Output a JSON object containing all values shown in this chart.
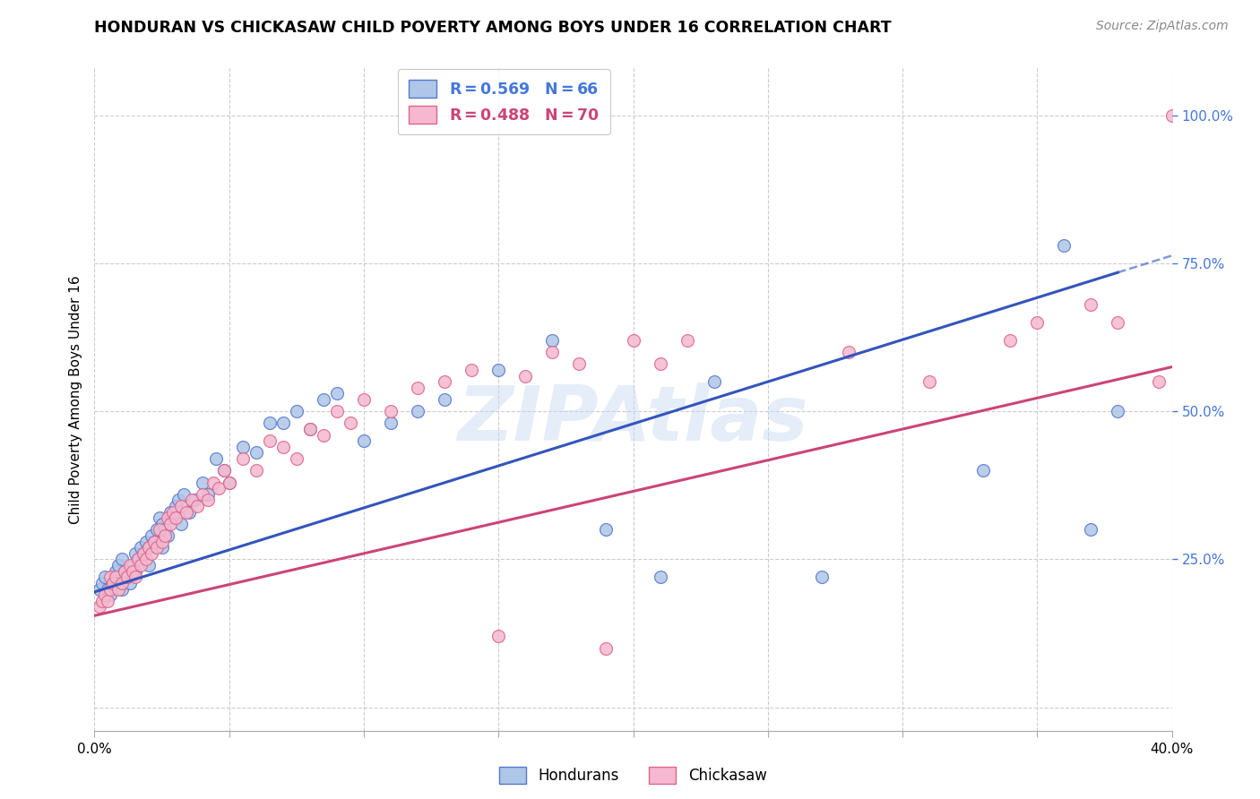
{
  "title": "HONDURAN VS CHICKASAW CHILD POVERTY AMONG BOYS UNDER 16 CORRELATION CHART",
  "source": "Source: ZipAtlas.com",
  "ylabel": "Child Poverty Among Boys Under 16",
  "watermark": "ZIPAtlas",
  "x_min": 0.0,
  "x_max": 0.4,
  "y_min": -0.04,
  "y_max": 1.08,
  "background_color": "#ffffff",
  "blue_scatter_color": "#aec6e8",
  "blue_line_color": "#3355bb",
  "blue_edge_color": "#5577cc",
  "pink_scatter_color": "#f5b8d0",
  "pink_line_color": "#cc4477",
  "pink_edge_color": "#dd6688",
  "grid_color": "#cccccc",
  "right_axis_color": "#4477dd",
  "blue_intercept": 0.195,
  "blue_slope": 1.42,
  "pink_intercept": 0.155,
  "pink_slope": 1.05,
  "blue_x": [
    0.002,
    0.003,
    0.004,
    0.005,
    0.006,
    0.007,
    0.008,
    0.008,
    0.009,
    0.01,
    0.01,
    0.011,
    0.012,
    0.013,
    0.014,
    0.015,
    0.015,
    0.016,
    0.017,
    0.018,
    0.019,
    0.02,
    0.02,
    0.021,
    0.022,
    0.023,
    0.024,
    0.025,
    0.025,
    0.026,
    0.027,
    0.028,
    0.029,
    0.03,
    0.031,
    0.032,
    0.033,
    0.035,
    0.037,
    0.04,
    0.042,
    0.045,
    0.048,
    0.05,
    0.055,
    0.06,
    0.065,
    0.07,
    0.075,
    0.08,
    0.085,
    0.09,
    0.1,
    0.11,
    0.12,
    0.13,
    0.15,
    0.17,
    0.19,
    0.21,
    0.23,
    0.27,
    0.33,
    0.36,
    0.37,
    0.38
  ],
  "blue_y": [
    0.2,
    0.21,
    0.22,
    0.2,
    0.19,
    0.21,
    0.22,
    0.23,
    0.24,
    0.2,
    0.25,
    0.23,
    0.22,
    0.21,
    0.24,
    0.23,
    0.26,
    0.25,
    0.27,
    0.26,
    0.28,
    0.24,
    0.27,
    0.29,
    0.28,
    0.3,
    0.32,
    0.27,
    0.31,
    0.3,
    0.29,
    0.33,
    0.32,
    0.34,
    0.35,
    0.31,
    0.36,
    0.33,
    0.35,
    0.38,
    0.36,
    0.42,
    0.4,
    0.38,
    0.44,
    0.43,
    0.48,
    0.48,
    0.5,
    0.47,
    0.52,
    0.53,
    0.45,
    0.48,
    0.5,
    0.52,
    0.57,
    0.62,
    0.3,
    0.22,
    0.55,
    0.22,
    0.4,
    0.78,
    0.3,
    0.5
  ],
  "pink_x": [
    0.002,
    0.003,
    0.004,
    0.005,
    0.006,
    0.006,
    0.007,
    0.008,
    0.009,
    0.01,
    0.011,
    0.012,
    0.013,
    0.014,
    0.015,
    0.016,
    0.017,
    0.018,
    0.019,
    0.02,
    0.021,
    0.022,
    0.023,
    0.024,
    0.025,
    0.026,
    0.027,
    0.028,
    0.029,
    0.03,
    0.032,
    0.034,
    0.036,
    0.038,
    0.04,
    0.042,
    0.044,
    0.046,
    0.048,
    0.05,
    0.055,
    0.06,
    0.065,
    0.07,
    0.075,
    0.08,
    0.085,
    0.09,
    0.095,
    0.1,
    0.11,
    0.12,
    0.13,
    0.14,
    0.15,
    0.16,
    0.17,
    0.18,
    0.19,
    0.2,
    0.21,
    0.22,
    0.28,
    0.31,
    0.34,
    0.35,
    0.37,
    0.38,
    0.395,
    0.4
  ],
  "pink_y": [
    0.17,
    0.18,
    0.19,
    0.18,
    0.2,
    0.22,
    0.21,
    0.22,
    0.2,
    0.21,
    0.23,
    0.22,
    0.24,
    0.23,
    0.22,
    0.25,
    0.24,
    0.26,
    0.25,
    0.27,
    0.26,
    0.28,
    0.27,
    0.3,
    0.28,
    0.29,
    0.32,
    0.31,
    0.33,
    0.32,
    0.34,
    0.33,
    0.35,
    0.34,
    0.36,
    0.35,
    0.38,
    0.37,
    0.4,
    0.38,
    0.42,
    0.4,
    0.45,
    0.44,
    0.42,
    0.47,
    0.46,
    0.5,
    0.48,
    0.52,
    0.5,
    0.54,
    0.55,
    0.57,
    0.12,
    0.56,
    0.6,
    0.58,
    0.1,
    0.62,
    0.58,
    0.62,
    0.6,
    0.55,
    0.62,
    0.65,
    0.68,
    0.65,
    0.55,
    1.0
  ]
}
